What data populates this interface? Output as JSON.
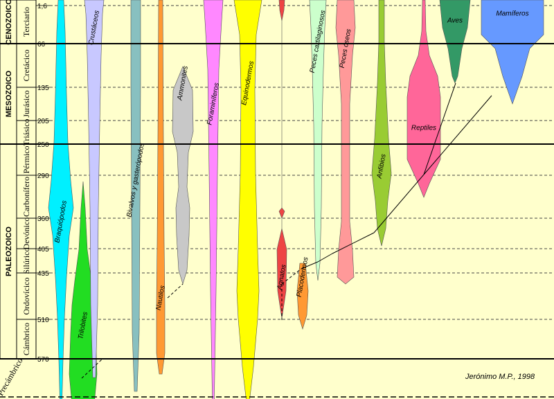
{
  "chart_data": {
    "type": "area",
    "axis_ticks": [
      "1,6",
      "66",
      "135",
      "205",
      "250",
      "290",
      "360",
      "405",
      "435",
      "510",
      "570"
    ],
    "eras": [
      {
        "label": "CENOZOICO",
        "from": "1,6",
        "to": "66"
      },
      {
        "label": "MESOZOICO",
        "from": "66",
        "to": "250"
      },
      {
        "label": "PALEOZOICO",
        "from": "250",
        "to": "570"
      }
    ],
    "periods": [
      {
        "label": "Terciario",
        "from": "1,6",
        "to": "66"
      },
      {
        "label": "Cretácico",
        "from": "66",
        "to": "135"
      },
      {
        "label": "Jurásico",
        "from": "135",
        "to": "205"
      },
      {
        "label": "Triásico",
        "from": "205",
        "to": "250"
      },
      {
        "label": "Pérmico",
        "from": "250",
        "to": "290"
      },
      {
        "label": "Carbonífero",
        "from": "290",
        "to": "360"
      },
      {
        "label": "Devónico",
        "from": "360",
        "to": "405"
      },
      {
        "label": "Silúrico",
        "from": "405",
        "to": "435"
      },
      {
        "label": "Ordovícico",
        "from": "435",
        "to": "510"
      },
      {
        "label": "Cámbrico",
        "from": "510",
        "to": "570"
      }
    ],
    "precambrian_label": "Precámbrico",
    "taxa": [
      {
        "label": "Braquiópodos",
        "color": "#00f0ff",
        "cx": 88,
        "profile": [
          [
            0,
            4
          ],
          [
            45,
            6
          ],
          [
            135,
            8
          ],
          [
            205,
            10
          ],
          [
            260,
            14
          ],
          [
            300,
            18
          ],
          [
            340,
            12
          ],
          [
            400,
            8
          ],
          [
            460,
            5
          ],
          [
            520,
            3
          ],
          [
            600,
            1
          ]
        ],
        "label_ms": 320,
        "extends_top": true
      },
      {
        "label": "Trilobites",
        "color": "#22dd22",
        "cx": 120,
        "profile": [
          [
            262,
            0
          ],
          [
            300,
            3
          ],
          [
            360,
            6
          ],
          [
            405,
            12
          ],
          [
            440,
            16
          ],
          [
            480,
            18
          ],
          [
            540,
            20
          ],
          [
            585,
            16
          ]
        ],
        "label_ms": 470,
        "extends_top": false
      },
      {
        "label": "Crustáceos",
        "color": "#c8c8ff",
        "cx": 136,
        "profile": [
          [
            0,
            14
          ],
          [
            20,
            12
          ],
          [
            80,
            10
          ],
          [
            180,
            8
          ],
          [
            300,
            6
          ],
          [
            440,
            5
          ],
          [
            545,
            2
          ]
        ],
        "label_ms": 40,
        "extends_top": true
      },
      {
        "label": "Bivalvos y gasterópodos",
        "color": "#88c0c0",
        "cx": 196,
        "profile": [
          [
            0,
            7
          ],
          [
            120,
            7
          ],
          [
            300,
            6
          ],
          [
            480,
            5
          ],
          [
            565,
            2
          ]
        ],
        "label_ms": 260,
        "extends_top": true
      },
      {
        "label": "Nautilos",
        "color": "#ff9933",
        "cx": 232,
        "profile": [
          [
            0,
            3
          ],
          [
            200,
            4
          ],
          [
            350,
            5
          ],
          [
            440,
            6
          ],
          [
            510,
            6
          ],
          [
            540,
            2
          ]
        ],
        "label_ms": 430,
        "extends_top": true
      },
      {
        "label": "Ammonites",
        "color": "#c8c8c8",
        "cx": 264,
        "profile": [
          [
            96,
            0
          ],
          [
            130,
            14
          ],
          [
            190,
            15
          ],
          [
            220,
            8
          ],
          [
            270,
            6
          ],
          [
            300,
            10
          ],
          [
            340,
            9
          ],
          [
            390,
            6
          ],
          [
            410,
            0
          ]
        ],
        "label_ms": 120,
        "extends_top": false
      },
      {
        "label": "Foraminíferos",
        "color": "#ff88ff",
        "cx": 308,
        "profile": [
          [
            0,
            14
          ],
          [
            30,
            12
          ],
          [
            100,
            8
          ],
          [
            250,
            6
          ],
          [
            420,
            4
          ],
          [
            600,
            1
          ]
        ],
        "label_ms": 150,
        "extends_top": true
      },
      {
        "label": "Equinodermos",
        "color": "#ffff00",
        "cx": 358,
        "profile": [
          [
            0,
            20
          ],
          [
            50,
            12
          ],
          [
            130,
            10
          ],
          [
            250,
            11
          ],
          [
            360,
            14
          ],
          [
            420,
            16
          ],
          [
            460,
            14
          ],
          [
            530,
            8
          ],
          [
            590,
            1
          ]
        ],
        "label_ms": 120,
        "extends_top": true
      },
      {
        "label": "Agnatos",
        "color": "#ee4444",
        "cx": 407,
        "profile": [
          [
            0,
            4
          ],
          [
            15,
            3
          ],
          [
            30,
            0
          ],
          [
            300,
            0
          ],
          [
            305,
            4
          ],
          [
            315,
            0
          ],
          [
            330,
            0
          ],
          [
            360,
            7
          ],
          [
            420,
            6
          ],
          [
            460,
            0
          ]
        ],
        "label_ms": 400,
        "extends_top": true
      },
      {
        "label": "Placodermos",
        "color": "#ff9933",
        "cx": 437,
        "profile": [
          [
            380,
            4
          ],
          [
            420,
            8
          ],
          [
            455,
            6
          ],
          [
            475,
            0
          ]
        ],
        "label_ms": 400,
        "extends_top": false
      },
      {
        "label": "Peces cartilaginosos",
        "color": "#ccffcc",
        "cx": 459,
        "profile": [
          [
            0,
            12
          ],
          [
            40,
            10
          ],
          [
            100,
            8
          ],
          [
            180,
            6
          ],
          [
            300,
            5
          ],
          [
            380,
            3
          ],
          [
            405,
            0
          ]
        ],
        "label_ms": 60,
        "extends_top": true
      },
      {
        "label": "Peces óseos",
        "color": "#ff9999",
        "cx": 499,
        "profile": [
          [
            0,
            12
          ],
          [
            40,
            14
          ],
          [
            80,
            10
          ],
          [
            150,
            6
          ],
          [
            250,
            6
          ],
          [
            320,
            6
          ],
          [
            360,
            10
          ],
          [
            400,
            12
          ],
          [
            410,
            0
          ]
        ],
        "label_ms": 70,
        "extends_top": true
      },
      {
        "label": "Anfibios",
        "color": "#99cc33",
        "cx": 551,
        "profile": [
          [
            0,
            4
          ],
          [
            60,
            4
          ],
          [
            120,
            6
          ],
          [
            200,
            10
          ],
          [
            250,
            14
          ],
          [
            290,
            9
          ],
          [
            330,
            6
          ],
          [
            355,
            0
          ]
        ],
        "label_ms": 240,
        "extends_top": true
      },
      {
        "label": "Reptiles",
        "color": "#ff6699",
        "cx": 612,
        "profile": [
          [
            0,
            2
          ],
          [
            45,
            3
          ],
          [
            80,
            8
          ],
          [
            110,
            20
          ],
          [
            140,
            24
          ],
          [
            230,
            24
          ],
          [
            265,
            8
          ],
          [
            285,
            0
          ]
        ],
        "label_ms": 185,
        "extends_top": true
      },
      {
        "label": "Aves",
        "color": "#339966",
        "cx": 657,
        "profile": [
          [
            0,
            22
          ],
          [
            40,
            18
          ],
          [
            70,
            10
          ],
          [
            110,
            4
          ],
          [
            120,
            0
          ]
        ],
        "label_ms": 30,
        "extends_top": true
      },
      {
        "label": "Mamíferos",
        "color": "#6699ff",
        "cx": 740,
        "profile": [
          [
            0,
            45
          ],
          [
            50,
            45
          ],
          [
            70,
            25
          ],
          [
            110,
            14
          ],
          [
            150,
            0
          ]
        ],
        "label_ms": 20,
        "extends_top": true
      }
    ],
    "links": [
      [
        [
          118,
          546
        ],
        [
          148,
          518
        ]
      ],
      [
        [
          242,
          430
        ],
        [
          264,
          410
        ]
      ],
      [
        [
          407,
          410
        ],
        [
          407,
          462
        ]
      ],
      [
        [
          407,
          410
        ],
        [
          435,
          388
        ]
      ],
      [
        [
          435,
          388
        ],
        [
          459,
          378
        ]
      ],
      [
        [
          459,
          378
        ],
        [
          480,
          366
        ]
      ],
      [
        [
          480,
          366
        ],
        [
          540,
          336
        ]
      ],
      [
        [
          540,
          336
        ],
        [
          612,
          252
        ]
      ],
      [
        [
          612,
          252
        ],
        [
          658,
          120
        ]
      ],
      [
        [
          612,
          252
        ],
        [
          710,
          138
        ]
      ]
    ],
    "author": "Jerónimo M.P.",
    "year": ", 1998"
  }
}
